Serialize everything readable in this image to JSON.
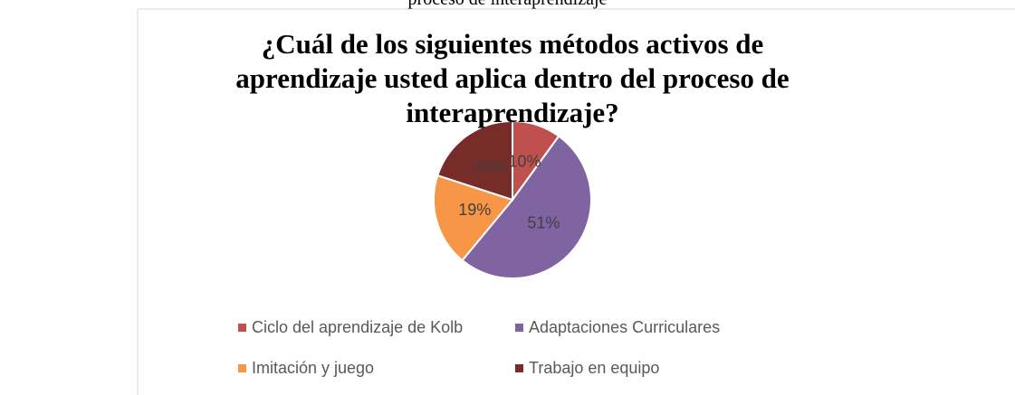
{
  "caption": "proceso de interaprendizaje",
  "chart_data": {
    "type": "pie",
    "title": "¿Cuál de los siguientes métodos activos de aprendizaje usted aplica dentro del proceso de interaprendizaje?",
    "categories": [
      "Ciclo del aprendizaje de Kolb",
      "Adaptaciones Curriculares",
      "Imitación y juego",
      "Trabajo en equipo"
    ],
    "values": [
      10,
      51,
      19,
      20
    ],
    "value_labels": [
      "10%",
      "51%",
      "19%",
      "20%"
    ],
    "colors": [
      "#c0504d",
      "#8064a2",
      "#f79646",
      "#772c2a"
    ],
    "legend": "bottom"
  }
}
